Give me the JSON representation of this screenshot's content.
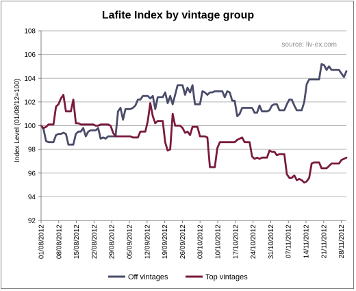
{
  "chart_data": {
    "type": "line",
    "title": "Lafite Index by vintage group",
    "source": "source: liv-ex.com",
    "ylabel": "Index Level (01/08/12=100)",
    "xlabel": "",
    "ylim": [
      92,
      108
    ],
    "y_ticks": [
      "92",
      "94",
      "96",
      "98",
      "100",
      "102",
      "104",
      "106",
      "108"
    ],
    "x_ticks": [
      "01/08/2012",
      "08/08/2012",
      "15/08/2012",
      "22/08/2012",
      "29/08/2012",
      "05/09/2012",
      "12/09/2012",
      "19/09/2012",
      "26/09/2012",
      "03/10/2012",
      "10/10/2012",
      "17/10/2012",
      "24/10/2012",
      "31/10/2012",
      "07/11/2012",
      "14/11/2012",
      "21/11/2012",
      "28/11/2012"
    ],
    "grid": "horizontal",
    "legend_position": "bottom",
    "colors": {
      "Off vintages": "#4a4c6a",
      "Top vintages": "#7a1a3e",
      "grid": "#b3b3b3",
      "axis": "#7f7f7f"
    },
    "series": [
      {
        "name": "Off vintages",
        "values": [
          100.0,
          99.7,
          98.7,
          98.6,
          98.6,
          98.6,
          99.2,
          99.3,
          99.3,
          99.4,
          99.3,
          98.4,
          98.4,
          98.4,
          99.3,
          99.5,
          99.5,
          99.8,
          99.1,
          99.5,
          99.6,
          99.6,
          99.6,
          99.8,
          98.9,
          99.0,
          98.9,
          99.1,
          99.1,
          99.1,
          99.1,
          101.2,
          101.5,
          100.5,
          101.4,
          101.4,
          101.4,
          101.5,
          101.7,
          102.2,
          102.2,
          102.5,
          102.5,
          102.5,
          102.3,
          102.5,
          101.4,
          102.4,
          102.4,
          102.4,
          102.8,
          101.9,
          102.5,
          101.8,
          102.6,
          103.4,
          103.4,
          103.4,
          102.6,
          103.2,
          102.8,
          103.4,
          101.8,
          101.8,
          101.8,
          102.9,
          102.8,
          102.6,
          102.8,
          102.8,
          102.9,
          102.9,
          102.9,
          102.9,
          102.4,
          102.9,
          102.8,
          102.1,
          102.1,
          100.8,
          101.0,
          101.5,
          101.5,
          101.5,
          101.5,
          101.5,
          101.1,
          101.1,
          101.7,
          101.2,
          101.2,
          101.2,
          101.3,
          101.7,
          101.8,
          101.8,
          101.3,
          101.3,
          101.3,
          101.8,
          102.2,
          102.2,
          101.7,
          101.3,
          101.3,
          101.3,
          102.0,
          103.5,
          103.9,
          103.9,
          103.9,
          103.9,
          103.9,
          105.2,
          105.1,
          104.7,
          105.0,
          104.7,
          104.7,
          104.7,
          104.7,
          104.4,
          104.1,
          104.6
        ]
      },
      {
        "name": "Top vintages",
        "values": [
          100.0,
          99.8,
          99.9,
          100.1,
          100.1,
          100.1,
          101.6,
          101.8,
          102.3,
          102.6,
          101.2,
          101.2,
          101.2,
          102.2,
          100.2,
          100.2,
          100.1,
          100.1,
          100.1,
          100.1,
          100.1,
          100.1,
          100.0,
          100.0,
          100.1,
          100.1,
          100.1,
          100.1,
          100.0,
          99.4,
          99.1,
          99.1,
          99.1,
          99.1,
          99.1,
          99.1,
          99.1,
          99.0,
          99.0,
          99.0,
          99.5,
          99.5,
          99.5,
          100.4,
          101.9,
          100.8,
          100.2,
          100.4,
          100.4,
          100.4,
          98.6,
          97.9,
          98.0,
          101.0,
          100.0,
          100.0,
          100.0,
          99.8,
          99.4,
          99.5,
          99.2,
          99.9,
          99.9,
          99.9,
          99.1,
          99.1,
          99.1,
          99.0,
          96.5,
          96.5,
          96.5,
          98.1,
          98.6,
          98.6,
          98.6,
          98.6,
          98.6,
          98.6,
          98.6,
          98.8,
          98.9,
          99.0,
          98.6,
          98.6,
          98.6,
          97.4,
          97.2,
          97.3,
          97.2,
          97.3,
          97.3,
          97.3,
          97.9,
          97.8,
          97.8,
          97.5,
          97.6,
          97.6,
          97.6,
          95.9,
          95.6,
          95.6,
          95.8,
          95.4,
          95.5,
          95.4,
          95.2,
          95.3,
          95.6,
          96.8,
          96.9,
          96.9,
          96.9,
          96.4,
          96.4,
          96.4,
          96.6,
          96.8,
          96.8,
          96.8,
          96.8,
          97.1,
          97.2,
          97.3
        ]
      }
    ]
  }
}
